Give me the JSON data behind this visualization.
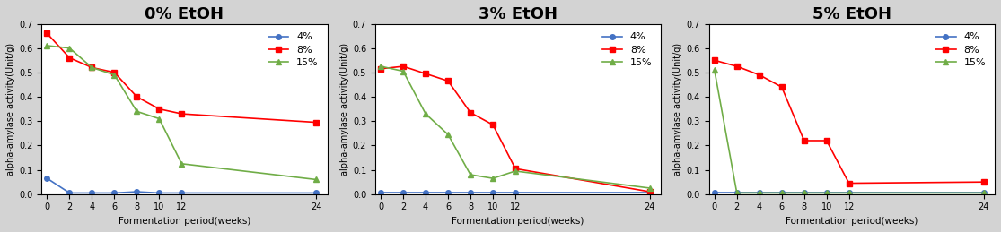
{
  "x": [
    0,
    2,
    4,
    6,
    8,
    10,
    12,
    24
  ],
  "panels": [
    {
      "title": "0% EtOH",
      "series": [
        {
          "label": "4%",
          "color": "#4472C4",
          "marker": "o",
          "values": [
            0.065,
            0.005,
            0.005,
            0.005,
            0.01,
            0.005,
            0.005,
            0.005
          ]
        },
        {
          "label": "8%",
          "color": "#FF0000",
          "marker": "s",
          "values": [
            0.66,
            0.56,
            0.52,
            0.5,
            0.4,
            0.35,
            0.33,
            0.295
          ]
        },
        {
          "label": "15%",
          "color": "#70AD47",
          "marker": "^",
          "values": [
            0.61,
            0.6,
            0.52,
            0.49,
            0.34,
            0.31,
            0.125,
            0.06
          ]
        }
      ]
    },
    {
      "title": "3% EtOH",
      "series": [
        {
          "label": "4%",
          "color": "#4472C4",
          "marker": "o",
          "values": [
            0.005,
            0.005,
            0.005,
            0.005,
            0.005,
            0.005,
            0.005,
            0.005
          ]
        },
        {
          "label": "8%",
          "color": "#FF0000",
          "marker": "s",
          "values": [
            0.515,
            0.525,
            0.495,
            0.465,
            0.335,
            0.285,
            0.105,
            0.01
          ]
        },
        {
          "label": "15%",
          "color": "#70AD47",
          "marker": "^",
          "values": [
            0.525,
            0.505,
            0.33,
            0.245,
            0.08,
            0.065,
            0.095,
            0.025
          ]
        }
      ]
    },
    {
      "title": "5% EtOH",
      "series": [
        {
          "label": "4%",
          "color": "#4472C4",
          "marker": "o",
          "values": [
            0.005,
            0.005,
            0.005,
            0.005,
            0.005,
            0.005,
            0.005,
            0.005
          ]
        },
        {
          "label": "8%",
          "color": "#FF0000",
          "marker": "s",
          "values": [
            0.55,
            0.525,
            0.49,
            0.44,
            0.22,
            0.22,
            0.045,
            0.05
          ]
        },
        {
          "label": "15%",
          "color": "#70AD47",
          "marker": "^",
          "values": [
            0.51,
            0.005,
            0.005,
            0.005,
            0.005,
            0.005,
            0.005,
            0.005
          ]
        }
      ]
    }
  ],
  "ylabel": "alpha-amylase activity(Unit/g)",
  "xlabel": "Formentation period(weeks)",
  "ylim": [
    0,
    0.7
  ],
  "yticks": [
    0,
    0.1,
    0.2,
    0.3,
    0.4,
    0.5,
    0.6,
    0.7
  ],
  "background_color": "#FFFFFF",
  "fig_background": "#D3D3D3"
}
